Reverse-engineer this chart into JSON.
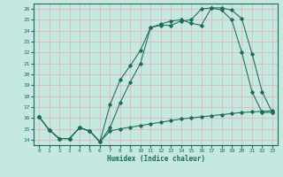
{
  "xlabel": "Humidex (Indice chaleur)",
  "bg_color": "#c5e8e0",
  "line_color": "#1a6b5a",
  "grid_color": "#deb8b8",
  "xlim": [
    -0.5,
    23.5
  ],
  "ylim": [
    13.5,
    26.5
  ],
  "xticks": [
    0,
    1,
    2,
    3,
    4,
    5,
    6,
    7,
    8,
    9,
    10,
    11,
    12,
    13,
    14,
    15,
    16,
    17,
    18,
    19,
    20,
    21,
    22,
    23
  ],
  "yticks": [
    14,
    15,
    16,
    17,
    18,
    19,
    20,
    21,
    22,
    23,
    24,
    25,
    26
  ],
  "line1_x": [
    0,
    1,
    2,
    3,
    4,
    5,
    6,
    7,
    8,
    9,
    10,
    11,
    12,
    13,
    14,
    15,
    16,
    17,
    18,
    19,
    20,
    21,
    22,
    23
  ],
  "line1_y": [
    16.1,
    14.9,
    14.1,
    14.1,
    15.1,
    14.8,
    13.8,
    14.8,
    15.0,
    15.15,
    15.3,
    15.45,
    15.6,
    15.75,
    15.9,
    16.0,
    16.1,
    16.2,
    16.3,
    16.4,
    16.5,
    16.55,
    16.6,
    16.65
  ],
  "line2_x": [
    0,
    1,
    2,
    3,
    4,
    5,
    6,
    7,
    8,
    9,
    10,
    11,
    12,
    13,
    14,
    15,
    16,
    17,
    18,
    19,
    20,
    21,
    22,
    23
  ],
  "line2_y": [
    16.1,
    14.9,
    14.1,
    14.1,
    15.1,
    14.8,
    13.8,
    17.2,
    19.5,
    20.8,
    22.2,
    24.3,
    24.6,
    24.9,
    25.0,
    24.7,
    24.5,
    26.1,
    26.1,
    25.9,
    25.1,
    21.9,
    18.4,
    16.5
  ],
  "line3_x": [
    0,
    1,
    2,
    3,
    4,
    5,
    6,
    7,
    8,
    9,
    10,
    11,
    12,
    13,
    14,
    15,
    16,
    17,
    18,
    19,
    20,
    21,
    22,
    23
  ],
  "line3_y": [
    16.1,
    14.9,
    14.1,
    14.1,
    15.1,
    14.8,
    13.8,
    15.1,
    17.4,
    19.3,
    21.0,
    24.3,
    24.5,
    24.5,
    24.9,
    25.0,
    26.0,
    26.1,
    25.9,
    25.0,
    22.0,
    18.4,
    16.5,
    16.5
  ]
}
